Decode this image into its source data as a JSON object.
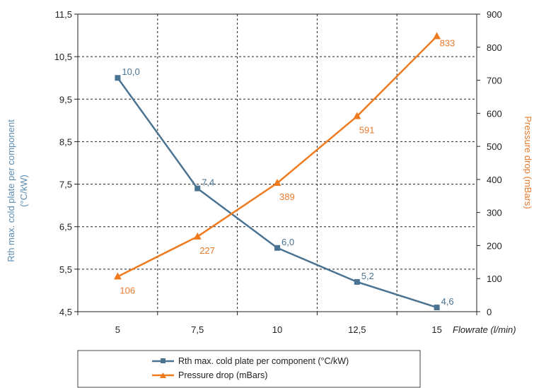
{
  "chart_data": {
    "type": "line",
    "x": [
      5,
      7.5,
      10,
      12.5,
      15
    ],
    "x_tick_labels": [
      "5",
      "7,5",
      "10",
      "12,5",
      "15"
    ],
    "xlabel": "Flowrate (l/min)",
    "ylabel_left": "Rth max. cold plate per component\n(°C/kW)",
    "ylabel_right": "Pressure drop (mBars)",
    "ylim_left": [
      4.5,
      11.5
    ],
    "ylim_right": [
      0,
      900
    ],
    "y_left_ticks": [
      "4,5",
      "5,5",
      "6,5",
      "7,5",
      "8,5",
      "9,5",
      "10,5",
      "11,5"
    ],
    "y_right_ticks": [
      "0",
      "100",
      "200",
      "300",
      "400",
      "500",
      "600",
      "700",
      "800",
      "900"
    ],
    "grid": "dashed",
    "legend_position": "bottom",
    "series": [
      {
        "name": "Rth max. cold plate per component (°C/kW)",
        "axis": "left",
        "color": "#4a7392",
        "marker": "square",
        "values": [
          10.0,
          7.4,
          6.0,
          5.2,
          4.6
        ],
        "labels": [
          "10,0",
          "7,4",
          "6,0",
          "5,2",
          "4,6"
        ]
      },
      {
        "name": "Pressure drop (mBars)",
        "axis": "right",
        "color": "#f07a1e",
        "marker": "triangle",
        "values": [
          106,
          227,
          389,
          591,
          833
        ],
        "labels": [
          "106",
          "227",
          "389",
          "591",
          "833"
        ]
      }
    ]
  }
}
